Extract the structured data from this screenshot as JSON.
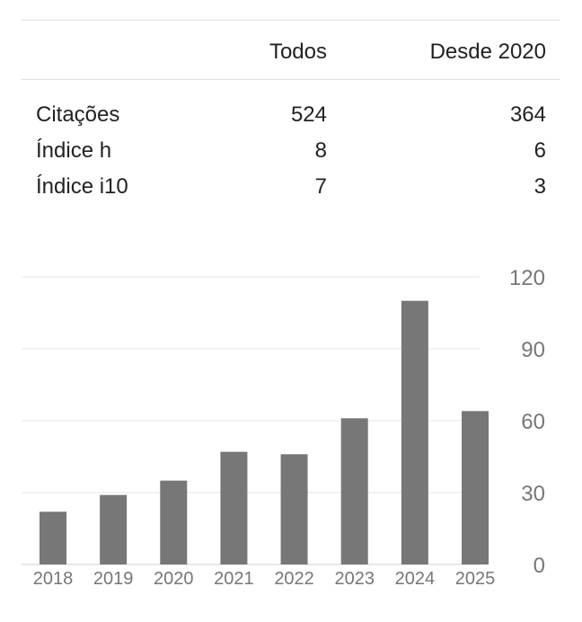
{
  "stats": {
    "columns": [
      "Todos",
      "Desde 2020"
    ],
    "rows": [
      {
        "label": "Citações",
        "all": "524",
        "since": "364"
      },
      {
        "label": "Índice h",
        "all": "8",
        "since": "6"
      },
      {
        "label": "Índice i10",
        "all": "7",
        "since": "3"
      }
    ]
  },
  "chart_data": {
    "type": "bar",
    "categories": [
      "2018",
      "2019",
      "2020",
      "2021",
      "2022",
      "2023",
      "2024",
      "2025"
    ],
    "values": [
      22,
      29,
      35,
      47,
      46,
      61,
      110,
      64
    ],
    "ylim": [
      0,
      120
    ],
    "yticks": [
      0,
      30,
      60,
      90,
      120
    ],
    "grid": true,
    "bar_color": "#777777"
  }
}
